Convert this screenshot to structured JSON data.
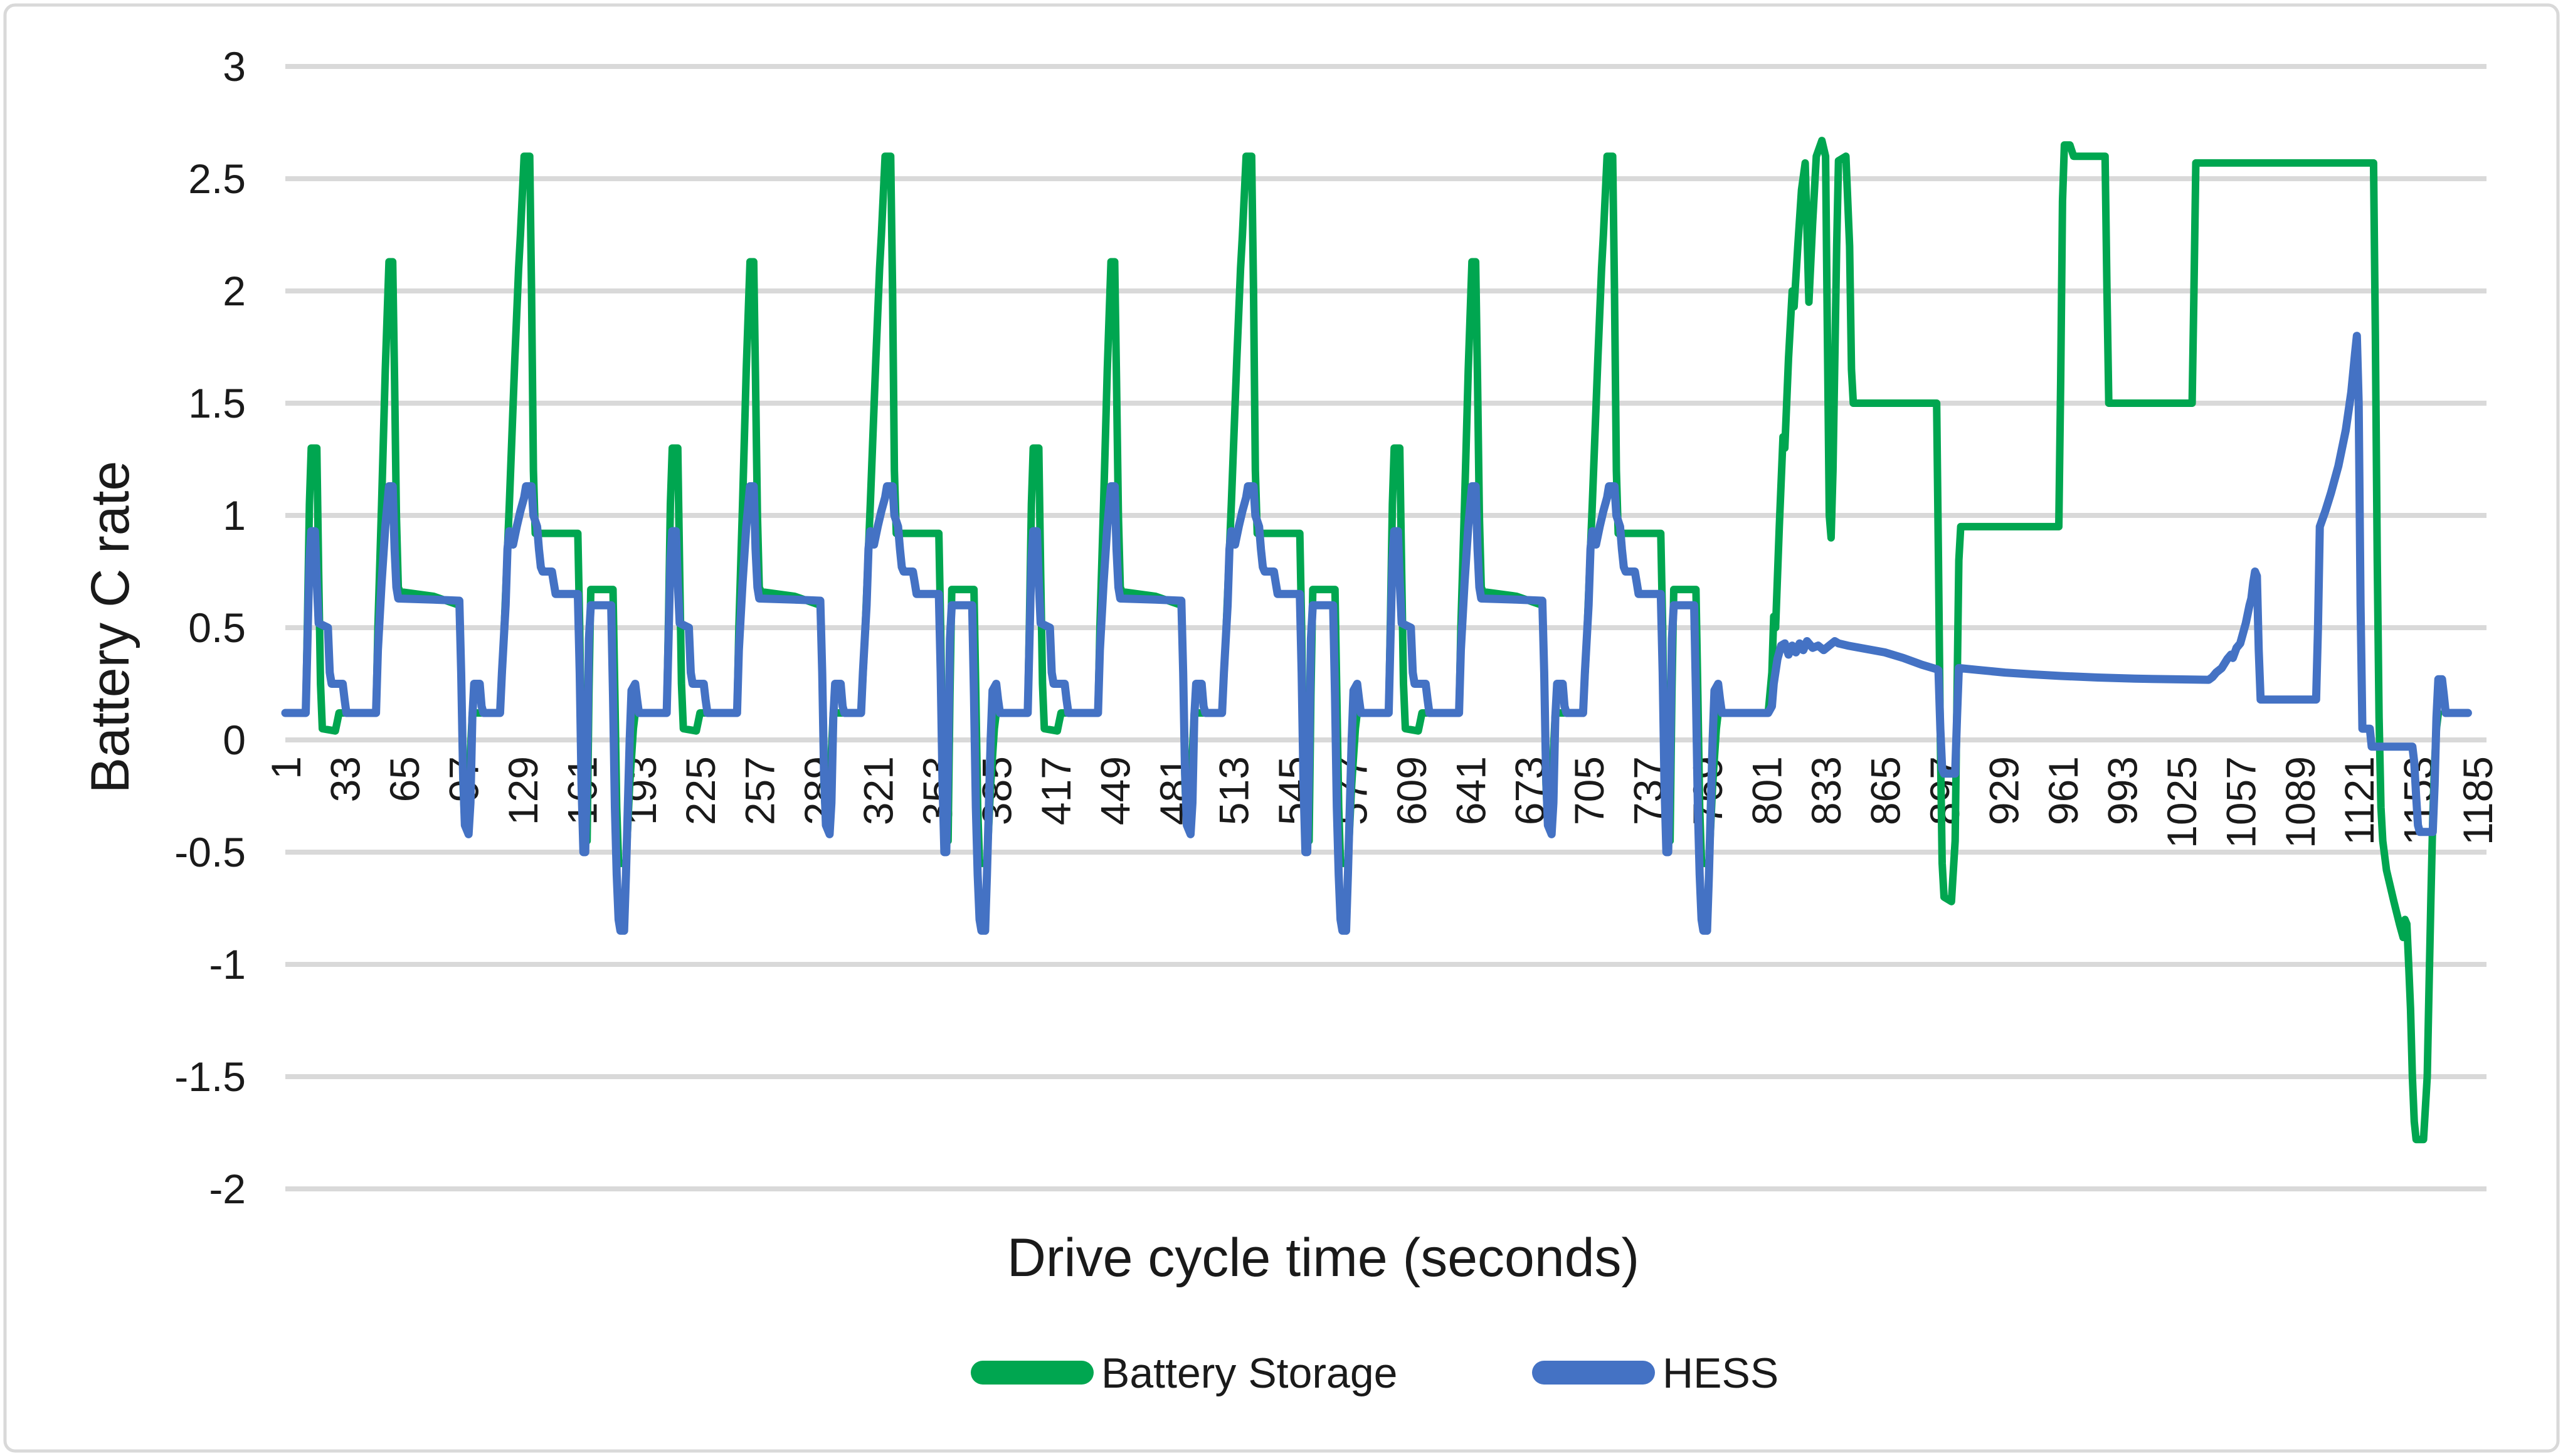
{
  "chart_data": {
    "type": "line",
    "title": "",
    "xlabel": "Drive cycle time (seconds)",
    "ylabel": "Battery C rate",
    "ylim": [
      -2,
      3
    ],
    "xlim": [
      1,
      1190
    ],
    "grid": "horizontal",
    "legend_position": "bottom-center",
    "colors": {
      "grid": "#D9D9D9",
      "frame_border": "#D9D9D9",
      "tick_text": "#1a1a1a",
      "background": "#ffffff"
    },
    "y_ticks": [
      3,
      2.5,
      2,
      1.5,
      1,
      0.5,
      0,
      -0.5,
      -1,
      -1.5,
      -2
    ],
    "x_ticks": [
      1,
      33,
      65,
      97,
      129,
      161,
      193,
      225,
      257,
      289,
      321,
      353,
      385,
      417,
      449,
      481,
      513,
      545,
      577,
      609,
      641,
      673,
      705,
      737,
      769,
      801,
      833,
      865,
      897,
      929,
      961,
      993,
      1025,
      1057,
      1089,
      1121,
      1153,
      1185
    ],
    "urban_cycle_offsets": [
      1,
      196,
      391,
      586
    ],
    "series": [
      {
        "name": "Battery Storage",
        "color": "#00A650",
        "stroke_width": 12,
        "cycle_points": [
          [
            0,
            0.12
          ],
          [
            11,
            0.12
          ],
          [
            12,
            0.55
          ],
          [
            13,
            1.05
          ],
          [
            14,
            1.3
          ],
          [
            17,
            1.3
          ],
          [
            18,
            0.75
          ],
          [
            19,
            0.25
          ],
          [
            20,
            0.05
          ],
          [
            27,
            0.04
          ],
          [
            28,
            0.08
          ],
          [
            29,
            0.12
          ],
          [
            49,
            0.12
          ],
          [
            50,
            0.5
          ],
          [
            52,
            1.05
          ],
          [
            54,
            1.65
          ],
          [
            56,
            2.13
          ],
          [
            58,
            2.13
          ],
          [
            59,
            1.6
          ],
          [
            60,
            1.0
          ],
          [
            61,
            0.68
          ],
          [
            62,
            0.66
          ],
          [
            80,
            0.64
          ],
          [
            94,
            0.6
          ],
          [
            95,
            0.3
          ],
          [
            96,
            -0.2
          ],
          [
            97,
            -0.38
          ],
          [
            99,
            -0.38
          ],
          [
            100,
            -0.05
          ],
          [
            101,
            0.12
          ],
          [
            116,
            0.12
          ],
          [
            118,
            0.45
          ],
          [
            121,
            1.05
          ],
          [
            124,
            1.7
          ],
          [
            126,
            2.1
          ],
          [
            127,
            2.25
          ],
          [
            129,
            2.6
          ],
          [
            132,
            2.6
          ],
          [
            133,
            2.0
          ],
          [
            134,
            1.2
          ],
          [
            135,
            0.92
          ],
          [
            158,
            0.92
          ],
          [
            159,
            0.5
          ],
          [
            160,
            -0.1
          ],
          [
            161,
            -0.45
          ],
          [
            163,
            -0.45
          ],
          [
            164,
            0.2
          ],
          [
            165,
            0.67
          ],
          [
            177,
            0.67
          ],
          [
            178,
            0.2
          ],
          [
            179,
            -0.3
          ],
          [
            180,
            -0.55
          ],
          [
            184,
            -0.55
          ],
          [
            186,
            -0.2
          ],
          [
            188,
            0.05
          ],
          [
            189,
            0.12
          ],
          [
            194,
            0.12
          ]
        ],
        "tail_points": [
          [
            781,
            0.12
          ],
          [
            802,
            0.12
          ],
          [
            804,
            0.3
          ],
          [
            805,
            0.55
          ],
          [
            806,
            0.5
          ],
          [
            808,
            0.95
          ],
          [
            810,
            1.35
          ],
          [
            811,
            1.3
          ],
          [
            813,
            1.7
          ],
          [
            815,
            2.0
          ],
          [
            816,
            1.93
          ],
          [
            818,
            2.2
          ],
          [
            820,
            2.45
          ],
          [
            822,
            2.57
          ],
          [
            824,
            1.95
          ],
          [
            826,
            2.3
          ],
          [
            828,
            2.6
          ],
          [
            831,
            2.67
          ],
          [
            833,
            2.6
          ],
          [
            834,
            1.8
          ],
          [
            835,
            1.0
          ],
          [
            836,
            0.9
          ],
          [
            837,
            1.2
          ],
          [
            839,
            2.2
          ],
          [
            840,
            2.58
          ],
          [
            844,
            2.6
          ],
          [
            846,
            2.2
          ],
          [
            847,
            1.65
          ],
          [
            848,
            1.5
          ],
          [
            893,
            1.5
          ],
          [
            894,
            0.8
          ],
          [
            895,
            0.0
          ],
          [
            896,
            -0.55
          ],
          [
            897,
            -0.7
          ],
          [
            901,
            -0.72
          ],
          [
            903,
            -0.45
          ],
          [
            904,
            0.2
          ],
          [
            905,
            0.8
          ],
          [
            906,
            0.95
          ],
          [
            959,
            0.95
          ],
          [
            960,
            1.6
          ],
          [
            961,
            2.4
          ],
          [
            962,
            2.65
          ],
          [
            965,
            2.65
          ],
          [
            967,
            2.6
          ],
          [
            984,
            2.6
          ],
          [
            985,
            2.0
          ],
          [
            986,
            1.5
          ],
          [
            1031,
            1.5
          ],
          [
            1032,
            2.0
          ],
          [
            1033,
            2.57
          ],
          [
            1129,
            2.57
          ],
          [
            1130,
            1.8
          ],
          [
            1131,
            0.8
          ],
          [
            1132,
            0.1
          ],
          [
            1133,
            -0.3
          ],
          [
            1134,
            -0.45
          ],
          [
            1136,
            -0.58
          ],
          [
            1140,
            -0.72
          ],
          [
            1143,
            -0.82
          ],
          [
            1145,
            -0.88
          ],
          [
            1146,
            -0.8
          ],
          [
            1147,
            -0.82
          ],
          [
            1148,
            -1.0
          ],
          [
            1149,
            -1.2
          ],
          [
            1150,
            -1.5
          ],
          [
            1151,
            -1.7
          ],
          [
            1152,
            -1.78
          ],
          [
            1156,
            -1.78
          ],
          [
            1158,
            -1.5
          ],
          [
            1159,
            -1.1
          ],
          [
            1160,
            -0.7
          ],
          [
            1161,
            -0.35
          ],
          [
            1162,
            -0.1
          ],
          [
            1163,
            0.05
          ],
          [
            1164,
            0.12
          ]
        ]
      },
      {
        "name": "HESS",
        "color": "#4472C4",
        "stroke_width": 13,
        "cycle_points": [
          [
            0,
            0.12
          ],
          [
            11,
            0.12
          ],
          [
            12,
            0.45
          ],
          [
            13,
            0.8
          ],
          [
            14,
            0.93
          ],
          [
            16,
            0.93
          ],
          [
            17,
            0.7
          ],
          [
            18,
            0.52
          ],
          [
            23,
            0.5
          ],
          [
            24,
            0.3
          ],
          [
            25,
            0.25
          ],
          [
            31,
            0.25
          ],
          [
            32,
            0.18
          ],
          [
            33,
            0.12
          ],
          [
            49,
            0.12
          ],
          [
            50,
            0.4
          ],
          [
            52,
            0.7
          ],
          [
            54,
            0.95
          ],
          [
            56,
            1.13
          ],
          [
            58,
            1.13
          ],
          [
            59,
            0.85
          ],
          [
            60,
            0.68
          ],
          [
            61,
            0.63
          ],
          [
            80,
            0.625
          ],
          [
            94,
            0.62
          ],
          [
            95,
            0.3
          ],
          [
            96,
            -0.15
          ],
          [
            97,
            -0.38
          ],
          [
            99,
            -0.42
          ],
          [
            100,
            -0.28
          ],
          [
            101,
            0.1
          ],
          [
            102,
            0.25
          ],
          [
            105,
            0.25
          ],
          [
            106,
            0.15
          ],
          [
            107,
            0.12
          ],
          [
            116,
            0.12
          ],
          [
            117,
            0.3
          ],
          [
            119,
            0.6
          ],
          [
            120,
            0.85
          ],
          [
            121,
            0.93
          ],
          [
            122,
            0.9
          ],
          [
            123,
            0.87
          ],
          [
            125,
            0.95
          ],
          [
            127,
            1.02
          ],
          [
            129,
            1.08
          ],
          [
            130,
            1.13
          ],
          [
            133,
            1.13
          ],
          [
            134,
            1.0
          ],
          [
            136,
            0.95
          ],
          [
            137,
            0.85
          ],
          [
            138,
            0.77
          ],
          [
            139,
            0.75
          ],
          [
            144,
            0.75
          ],
          [
            145,
            0.7
          ],
          [
            146,
            0.65
          ],
          [
            158,
            0.65
          ],
          [
            159,
            0.3
          ],
          [
            160,
            -0.2
          ],
          [
            161,
            -0.5
          ],
          [
            162,
            -0.5
          ],
          [
            163,
            -0.1
          ],
          [
            164,
            0.45
          ],
          [
            165,
            0.6
          ],
          [
            176,
            0.6
          ],
          [
            177,
            0.2
          ],
          [
            178,
            -0.3
          ],
          [
            179,
            -0.6
          ],
          [
            180,
            -0.8
          ],
          [
            181,
            -0.85
          ],
          [
            183,
            -0.85
          ],
          [
            184,
            -0.6
          ],
          [
            185,
            -0.3
          ],
          [
            186,
            0.0
          ],
          [
            187,
            0.22
          ],
          [
            189,
            0.25
          ],
          [
            190,
            0.18
          ],
          [
            191,
            0.12
          ],
          [
            194,
            0.12
          ]
        ],
        "tail_points": [
          [
            781,
            0.12
          ],
          [
            802,
            0.12
          ],
          [
            804,
            0.15
          ],
          [
            805,
            0.25
          ],
          [
            807,
            0.36
          ],
          [
            809,
            0.42
          ],
          [
            811,
            0.43
          ],
          [
            813,
            0.38
          ],
          [
            815,
            0.42
          ],
          [
            817,
            0.39
          ],
          [
            819,
            0.43
          ],
          [
            821,
            0.4
          ],
          [
            823,
            0.44
          ],
          [
            826,
            0.41
          ],
          [
            829,
            0.42
          ],
          [
            832,
            0.4
          ],
          [
            835,
            0.42
          ],
          [
            838,
            0.44
          ],
          [
            840,
            0.43
          ],
          [
            845,
            0.42
          ],
          [
            855,
            0.405
          ],
          [
            865,
            0.39
          ],
          [
            875,
            0.365
          ],
          [
            885,
            0.335
          ],
          [
            893,
            0.315
          ],
          [
            894,
            0.31
          ],
          [
            895,
            0.05
          ],
          [
            896,
            -0.13
          ],
          [
            897,
            -0.15
          ],
          [
            903,
            -0.15
          ],
          [
            904,
            0.1
          ],
          [
            905,
            0.32
          ],
          [
            915,
            0.312
          ],
          [
            930,
            0.3
          ],
          [
            945,
            0.292
          ],
          [
            960,
            0.285
          ],
          [
            980,
            0.278
          ],
          [
            1000,
            0.273
          ],
          [
            1020,
            0.27
          ],
          [
            1040,
            0.268
          ],
          [
            1042,
            0.28
          ],
          [
            1044,
            0.3
          ],
          [
            1047,
            0.32
          ],
          [
            1050,
            0.36
          ],
          [
            1052,
            0.38
          ],
          [
            1053,
            0.365
          ],
          [
            1055,
            0.41
          ],
          [
            1057,
            0.43
          ],
          [
            1058,
            0.46
          ],
          [
            1060,
            0.52
          ],
          [
            1062,
            0.6
          ],
          [
            1063,
            0.63
          ],
          [
            1064,
            0.7
          ],
          [
            1065,
            0.75
          ],
          [
            1066,
            0.73
          ],
          [
            1067,
            0.4
          ],
          [
            1068,
            0.18
          ],
          [
            1098,
            0.18
          ],
          [
            1099,
            0.5
          ],
          [
            1100,
            0.95
          ],
          [
            1103,
            1.02
          ],
          [
            1106,
            1.1
          ],
          [
            1110,
            1.22
          ],
          [
            1114,
            1.38
          ],
          [
            1117,
            1.55
          ],
          [
            1119,
            1.72
          ],
          [
            1120,
            1.8
          ],
          [
            1121,
            1.5
          ],
          [
            1122,
            0.6
          ],
          [
            1123,
            0.05
          ],
          [
            1127,
            0.05
          ],
          [
            1128,
            -0.03
          ],
          [
            1150,
            -0.03
          ],
          [
            1151,
            -0.1
          ],
          [
            1152,
            -0.25
          ],
          [
            1153,
            -0.38
          ],
          [
            1154,
            -0.41
          ],
          [
            1161,
            -0.41
          ],
          [
            1162,
            -0.2
          ],
          [
            1163,
            0.1
          ],
          [
            1164,
            0.27
          ],
          [
            1166,
            0.27
          ],
          [
            1167,
            0.2
          ],
          [
            1168,
            0.12
          ],
          [
            1180,
            0.12
          ]
        ]
      }
    ],
    "legend": {
      "items": [
        {
          "label": "Battery Storage",
          "color": "#00A650"
        },
        {
          "label": "HESS",
          "color": "#4472C4"
        }
      ]
    }
  }
}
